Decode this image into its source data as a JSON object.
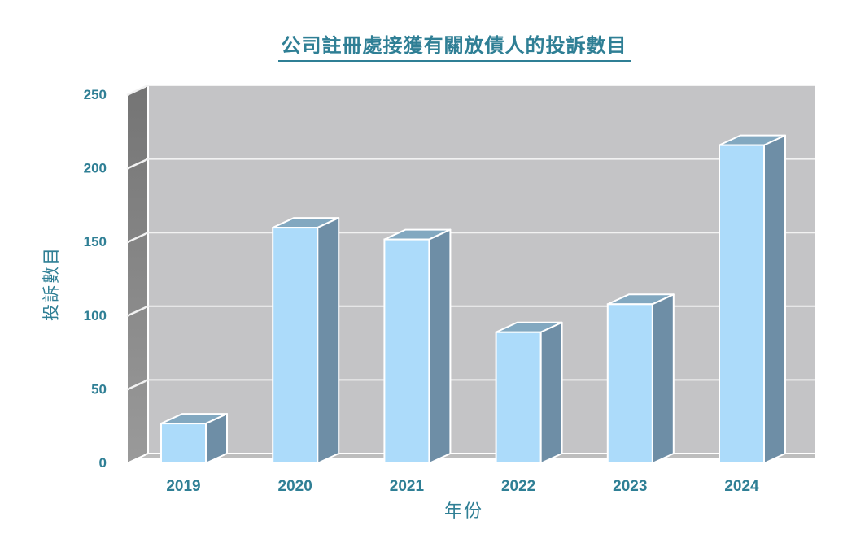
{
  "chart_data": {
    "type": "bar",
    "style": "3d-oblique-column",
    "title": "公司註冊處接獲有關放債人的投訴數目",
    "xlabel": "年份",
    "ylabel": "投訴數目",
    "categories": [
      "2019",
      "2020",
      "2021",
      "2022",
      "2023",
      "2024"
    ],
    "values": [
      27,
      160,
      152,
      89,
      108,
      216
    ],
    "ylim": [
      0,
      250
    ],
    "yticks": [
      0,
      50,
      100,
      150,
      200,
      250
    ],
    "grid": true,
    "legend": false
  },
  "colors": {
    "accent_text": "#2F7F95",
    "title_underline": "#2F7F95",
    "bar_front": "#ACDBFA",
    "bar_top": "#82A8C0",
    "bar_side": "#6E8EA6",
    "bar_edge": "#FFFFFF",
    "wall_back": "#C4C4C6",
    "wall_left_top": "#747474",
    "wall_left_bottom": "#9A9A9A",
    "floor": "#BDBDBD",
    "gridline": "#F2F2F2",
    "background": "#FFFFFF"
  }
}
